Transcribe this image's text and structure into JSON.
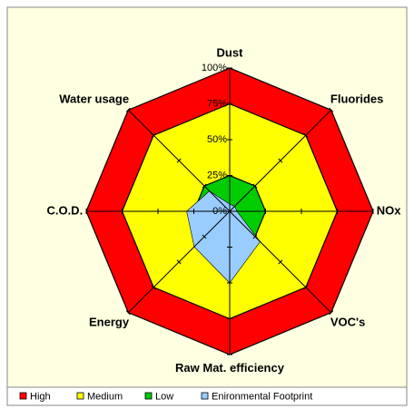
{
  "chart_data": {
    "type": "radar",
    "categories": [
      "Dust",
      "Fluorides",
      "NOx",
      "VOC's",
      "Raw Mat. efficiency",
      "Energy",
      "C.O.D.",
      "Water usage"
    ],
    "series": [
      {
        "name": "High",
        "color": "#ff0000",
        "values": [
          100,
          100,
          100,
          100,
          100,
          100,
          100,
          100
        ]
      },
      {
        "name": "Medium",
        "color": "#ffff00",
        "values": [
          75,
          75,
          75,
          75,
          75,
          75,
          75,
          75
        ]
      },
      {
        "name": "Low",
        "color": "#00cc00",
        "values": [
          25,
          25,
          25,
          25,
          25,
          25,
          25,
          25
        ]
      },
      {
        "name": "Enironmental Footprint",
        "color": "#99ccff",
        "values": [
          5,
          5,
          5,
          30,
          50,
          35,
          30,
          20
        ]
      }
    ],
    "ylim": [
      0,
      100
    ],
    "yticks": [
      {
        "value": 0,
        "label": "0%"
      },
      {
        "value": 25,
        "label": "25%"
      },
      {
        "value": 50,
        "label": "50%"
      },
      {
        "value": 75,
        "label": "75%"
      },
      {
        "value": 100,
        "label": "100%"
      }
    ]
  }
}
